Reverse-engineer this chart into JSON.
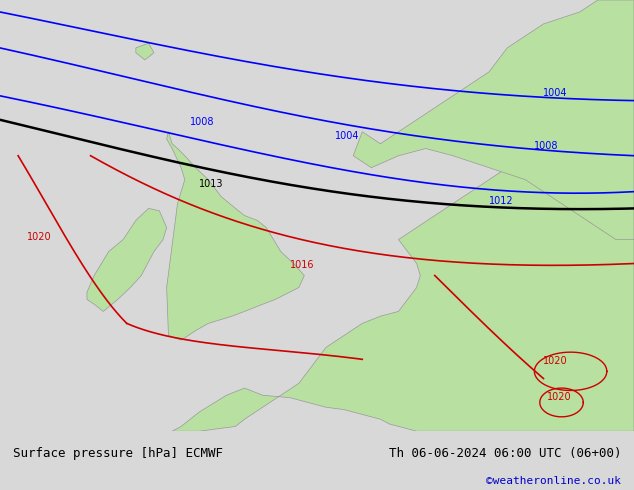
{
  "title_left": "Surface pressure [hPa] ECMWF",
  "title_right": "Th 06-06-2024 06:00 UTC (06+00)",
  "credit": "©weatheronline.co.uk",
  "bg_color": "#d8d8d8",
  "land_color": "#b8e0a0",
  "coast_color": "#999999",
  "text_color_left": "#000000",
  "text_color_right": "#000000",
  "credit_color": "#0000cc",
  "isobar_blue_color": "#0000ff",
  "isobar_black_color": "#000000",
  "isobar_red_color": "#cc0000",
  "figsize": [
    6.34,
    4.9
  ],
  "dpi": 100,
  "font_size_bottom": 9,
  "font_size_credit": 8,
  "font_size_label": 7
}
